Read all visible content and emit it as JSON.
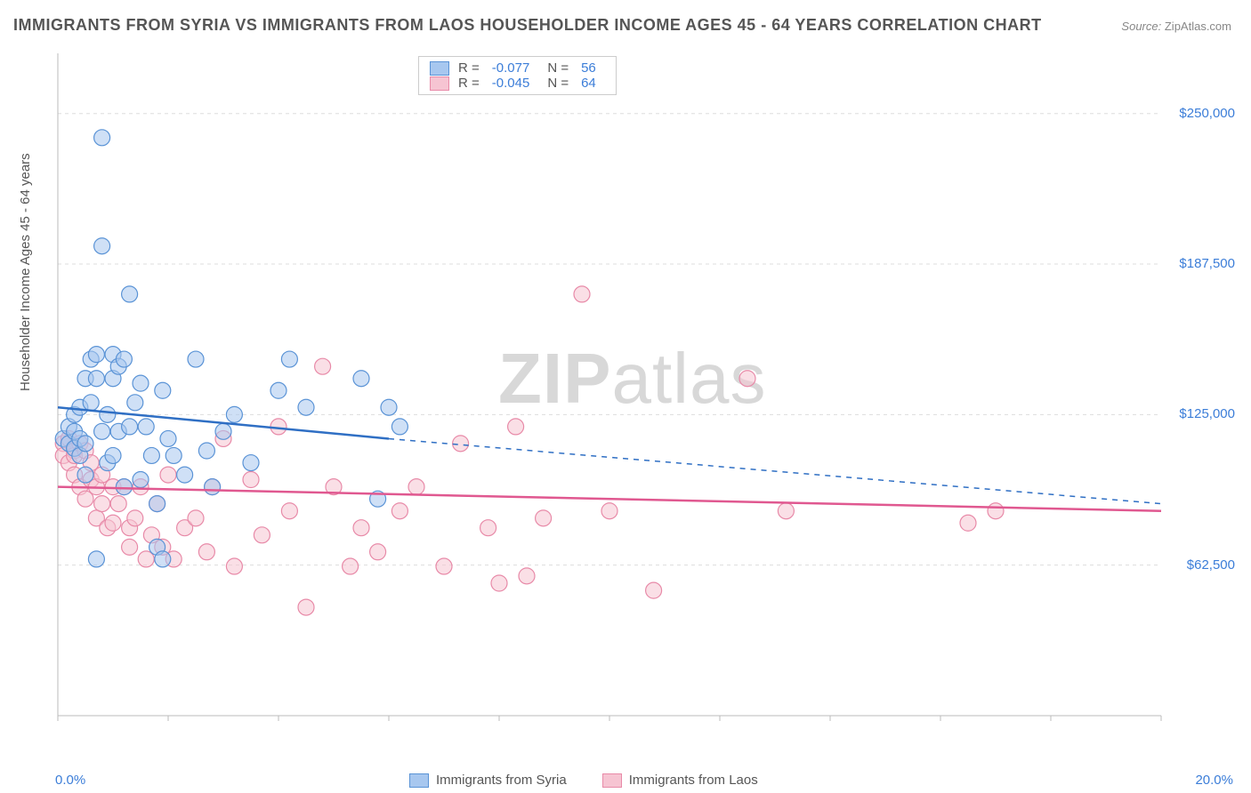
{
  "title": "IMMIGRANTS FROM SYRIA VS IMMIGRANTS FROM LAOS HOUSEHOLDER INCOME AGES 45 - 64 YEARS CORRELATION CHART",
  "source_label": "Source:",
  "source_value": "ZipAtlas.com",
  "y_axis_label": "Householder Income Ages 45 - 64 years",
  "watermark_a": "ZIP",
  "watermark_b": "atlas",
  "chart": {
    "type": "scatter",
    "x_min": 0.0,
    "x_max": 20.0,
    "y_min": 0,
    "y_max": 275000,
    "y_ticks": [
      62500,
      125000,
      187500,
      250000
    ],
    "y_tick_labels": [
      "$62,500",
      "$125,000",
      "$187,500",
      "$250,000"
    ],
    "x_tick_left": "0.0%",
    "x_tick_right": "20.0%",
    "grid_color": "#dddddd",
    "axis_color": "#bbbbbb",
    "plot_bg": "#ffffff",
    "marker_radius": 9,
    "marker_opacity": 0.55,
    "series": [
      {
        "name": "Immigrants from Syria",
        "fill": "#a7c7ef",
        "stroke": "#5a93d6",
        "line_color": "#2f6fc4",
        "R": "-0.077",
        "N": "56",
        "trend": {
          "x1": 0.0,
          "y1": 128000,
          "x2": 6.0,
          "y2": 115000,
          "x_extend": 20.0,
          "y_extend": 88000
        },
        "points": [
          [
            0.1,
            115000
          ],
          [
            0.2,
            113000
          ],
          [
            0.2,
            120000
          ],
          [
            0.3,
            125000
          ],
          [
            0.3,
            118000
          ],
          [
            0.3,
            111000
          ],
          [
            0.4,
            128000
          ],
          [
            0.4,
            108000
          ],
          [
            0.4,
            115000
          ],
          [
            0.5,
            140000
          ],
          [
            0.5,
            113000
          ],
          [
            0.5,
            100000
          ],
          [
            0.6,
            148000
          ],
          [
            0.6,
            130000
          ],
          [
            0.7,
            150000
          ],
          [
            0.7,
            140000
          ],
          [
            0.7,
            65000
          ],
          [
            0.8,
            240000
          ],
          [
            0.8,
            195000
          ],
          [
            0.8,
            118000
          ],
          [
            0.9,
            125000
          ],
          [
            0.9,
            105000
          ],
          [
            1.0,
            150000
          ],
          [
            1.0,
            140000
          ],
          [
            1.0,
            108000
          ],
          [
            1.1,
            145000
          ],
          [
            1.1,
            118000
          ],
          [
            1.2,
            148000
          ],
          [
            1.2,
            95000
          ],
          [
            1.3,
            175000
          ],
          [
            1.3,
            120000
          ],
          [
            1.4,
            130000
          ],
          [
            1.5,
            138000
          ],
          [
            1.5,
            98000
          ],
          [
            1.6,
            120000
          ],
          [
            1.7,
            108000
          ],
          [
            1.8,
            88000
          ],
          [
            1.8,
            70000
          ],
          [
            1.9,
            135000
          ],
          [
            1.9,
            65000
          ],
          [
            2.0,
            115000
          ],
          [
            2.1,
            108000
          ],
          [
            2.3,
            100000
          ],
          [
            2.5,
            148000
          ],
          [
            2.7,
            110000
          ],
          [
            2.8,
            95000
          ],
          [
            3.0,
            118000
          ],
          [
            3.2,
            125000
          ],
          [
            3.5,
            105000
          ],
          [
            4.0,
            135000
          ],
          [
            4.2,
            148000
          ],
          [
            4.5,
            128000
          ],
          [
            5.5,
            140000
          ],
          [
            5.8,
            90000
          ],
          [
            6.0,
            128000
          ],
          [
            6.2,
            120000
          ]
        ]
      },
      {
        "name": "Immigrants from Laos",
        "fill": "#f6c4d2",
        "stroke": "#e88aa8",
        "line_color": "#e05890",
        "R": "-0.045",
        "N": "64",
        "trend": {
          "x1": 0.0,
          "y1": 95000,
          "x2": 20.0,
          "y2": 85000
        },
        "points": [
          [
            0.1,
            113000
          ],
          [
            0.1,
            108000
          ],
          [
            0.2,
            115000
          ],
          [
            0.2,
            105000
          ],
          [
            0.3,
            110000
          ],
          [
            0.3,
            100000
          ],
          [
            0.3,
            108000
          ],
          [
            0.4,
            113000
          ],
          [
            0.4,
            95000
          ],
          [
            0.5,
            110000
          ],
          [
            0.5,
            90000
          ],
          [
            0.6,
            98000
          ],
          [
            0.6,
            105000
          ],
          [
            0.7,
            95000
          ],
          [
            0.7,
            82000
          ],
          [
            0.8,
            100000
          ],
          [
            0.8,
            88000
          ],
          [
            0.9,
            78000
          ],
          [
            1.0,
            95000
          ],
          [
            1.0,
            80000
          ],
          [
            1.1,
            88000
          ],
          [
            1.2,
            95000
          ],
          [
            1.3,
            78000
          ],
          [
            1.3,
            70000
          ],
          [
            1.4,
            82000
          ],
          [
            1.5,
            95000
          ],
          [
            1.6,
            65000
          ],
          [
            1.7,
            75000
          ],
          [
            1.8,
            88000
          ],
          [
            1.9,
            70000
          ],
          [
            2.0,
            100000
          ],
          [
            2.1,
            65000
          ],
          [
            2.3,
            78000
          ],
          [
            2.5,
            82000
          ],
          [
            2.7,
            68000
          ],
          [
            2.8,
            95000
          ],
          [
            3.0,
            115000
          ],
          [
            3.2,
            62000
          ],
          [
            3.5,
            98000
          ],
          [
            3.7,
            75000
          ],
          [
            4.0,
            120000
          ],
          [
            4.2,
            85000
          ],
          [
            4.5,
            45000
          ],
          [
            4.8,
            145000
          ],
          [
            5.0,
            95000
          ],
          [
            5.3,
            62000
          ],
          [
            5.5,
            78000
          ],
          [
            5.8,
            68000
          ],
          [
            6.2,
            85000
          ],
          [
            6.5,
            95000
          ],
          [
            7.0,
            62000
          ],
          [
            7.3,
            113000
          ],
          [
            7.8,
            78000
          ],
          [
            8.0,
            55000
          ],
          [
            8.3,
            120000
          ],
          [
            8.5,
            58000
          ],
          [
            8.8,
            82000
          ],
          [
            9.5,
            175000
          ],
          [
            10.0,
            85000
          ],
          [
            10.8,
            52000
          ],
          [
            12.5,
            140000
          ],
          [
            13.2,
            85000
          ],
          [
            16.5,
            80000
          ],
          [
            17.0,
            85000
          ]
        ]
      }
    ]
  },
  "legend_bottom": [
    "Immigrants from Syria",
    "Immigrants from Laos"
  ]
}
